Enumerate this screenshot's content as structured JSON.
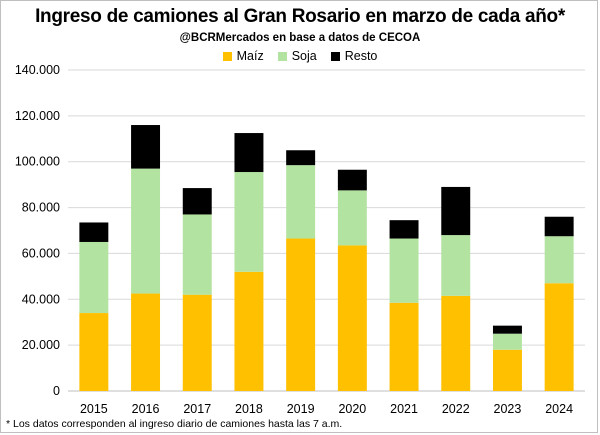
{
  "header": {
    "title": "Ingreso de camiones al Gran Rosario en marzo de cada año*",
    "subtitle": "@BCRMercados en base a datos de CECOA"
  },
  "footnote": "* Los datos corresponden al ingreso diario de camiones hasta las 7 a.m.",
  "chart_data": {
    "type": "bar",
    "stacked": true,
    "title": "Ingreso de camiones al Gran Rosario en marzo de cada año*",
    "subtitle": "@BCRMercados en base a datos de CECOA",
    "categories": [
      "2015",
      "2016",
      "2017",
      "2018",
      "2019",
      "2020",
      "2021",
      "2022",
      "2023",
      "2024"
    ],
    "series": [
      {
        "name": "Maíz",
        "color": "#ffc000",
        "values": [
          34000,
          42500,
          42000,
          52000,
          66500,
          63500,
          38500,
          41500,
          18000,
          47000
        ]
      },
      {
        "name": "Soja",
        "color": "#b3e3a1",
        "values": [
          31000,
          54500,
          35000,
          43500,
          32000,
          24000,
          28000,
          26500,
          7000,
          20500
        ]
      },
      {
        "name": "Resto",
        "color": "#000000",
        "values": [
          8500,
          19000,
          11500,
          17000,
          6500,
          9000,
          8000,
          21000,
          3500,
          8500
        ]
      }
    ],
    "yticks": [
      "0",
      "20.000",
      "40.000",
      "60.000",
      "80.000",
      "100.000",
      "120.000",
      "140.000"
    ],
    "ylim": [
      0,
      140000
    ],
    "xlabel": "",
    "ylabel": "",
    "grid": true,
    "legend_position": "top"
  }
}
